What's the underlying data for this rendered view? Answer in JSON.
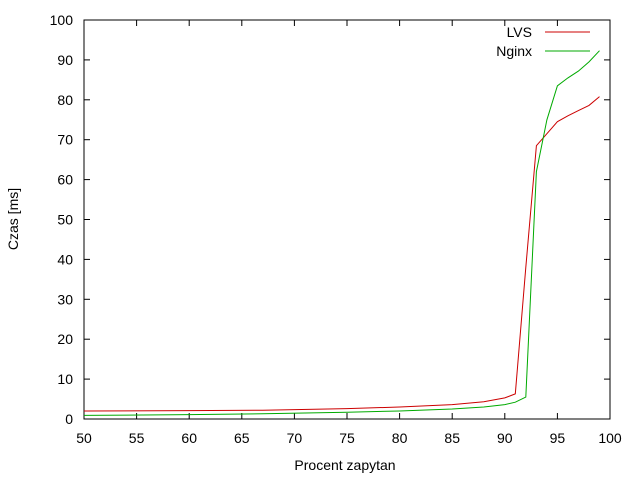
{
  "chart_data": {
    "type": "line",
    "title": "",
    "xlabel": "Procent zapytan",
    "ylabel": "Czas [ms]",
    "xlim": [
      50,
      100
    ],
    "ylim": [
      0,
      100
    ],
    "xticks": [
      "50",
      "55",
      "60",
      "65",
      "70",
      "75",
      "80",
      "85",
      "90",
      "95",
      "100"
    ],
    "yticks": [
      "0",
      "10",
      "20",
      "30",
      "40",
      "50",
      "60",
      "70",
      "80",
      "90",
      "100"
    ],
    "grid": false,
    "legend_position": "top-right",
    "series": [
      {
        "name": "LVS",
        "color": "#cc0000",
        "points": [
          [
            50,
            2.0
          ],
          [
            60,
            2.1
          ],
          [
            67,
            2.2
          ],
          [
            75,
            2.6
          ],
          [
            80,
            3.0
          ],
          [
            85,
            3.6
          ],
          [
            88,
            4.3
          ],
          [
            90,
            5.3
          ],
          [
            91,
            6.3
          ],
          [
            92,
            38
          ],
          [
            93,
            68.5
          ],
          [
            94,
            71.5
          ],
          [
            95,
            74.5
          ],
          [
            96,
            76
          ],
          [
            97,
            77.3
          ],
          [
            98,
            78.6
          ],
          [
            99,
            80.8
          ]
        ]
      },
      {
        "name": "Nginx",
        "color": "#00aa00",
        "points": [
          [
            50,
            0.9
          ],
          [
            60,
            1.1
          ],
          [
            67,
            1.3
          ],
          [
            75,
            1.7
          ],
          [
            80,
            2.0
          ],
          [
            85,
            2.5
          ],
          [
            88,
            3.0
          ],
          [
            90,
            3.6
          ],
          [
            91,
            4.2
          ],
          [
            92,
            5.5
          ],
          [
            93,
            62
          ],
          [
            94,
            75
          ],
          [
            95,
            83.5
          ],
          [
            96,
            85.5
          ],
          [
            97,
            87.2
          ],
          [
            98,
            89.5
          ],
          [
            99,
            92.3
          ]
        ]
      }
    ]
  }
}
